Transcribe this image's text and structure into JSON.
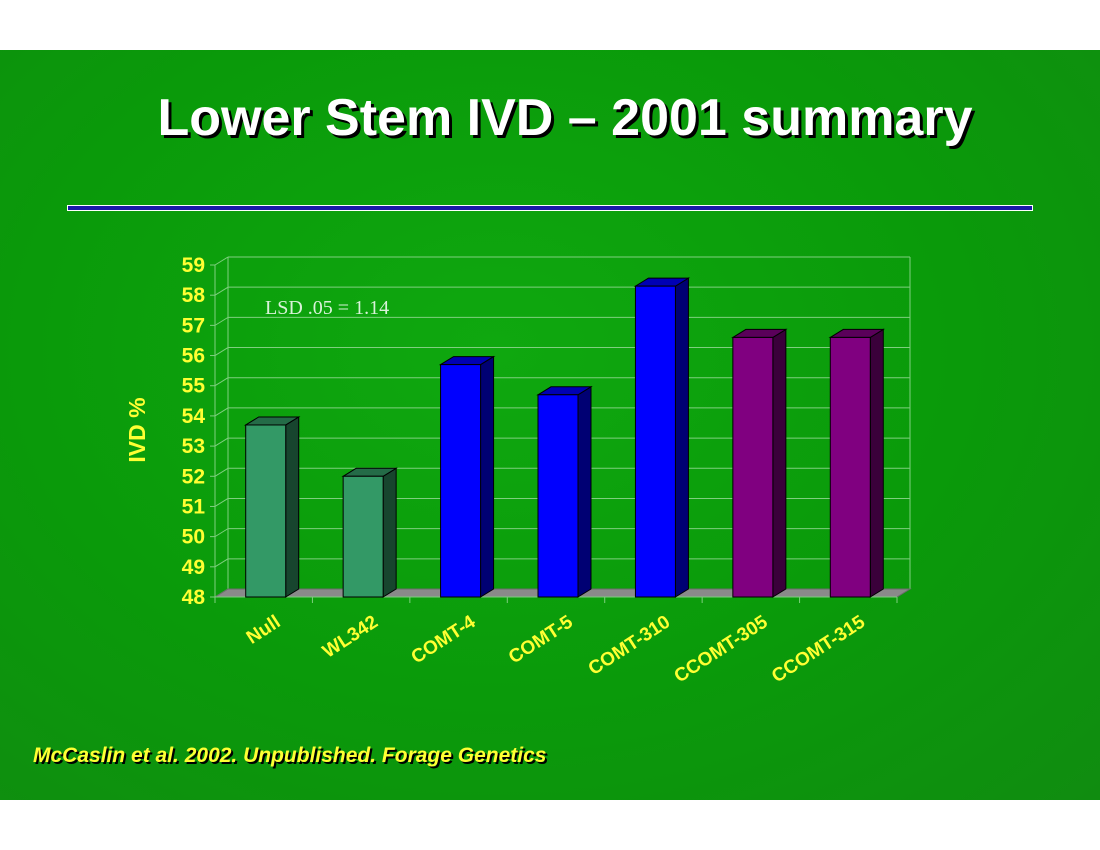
{
  "slide": {
    "title": "Lower Stem IVD – 2001 summary",
    "citation": "McCaslin et al. 2002.  Unpublished.  Forage Genetics"
  },
  "chart_data": {
    "type": "bar",
    "title": "",
    "xlabel": "",
    "ylabel": "IVD %",
    "categories": [
      "Null",
      "WL342",
      "COMT-4",
      "COMT-5",
      "COMT-310",
      "CCOMT-305",
      "CCOMT-315"
    ],
    "values": [
      53.7,
      52.0,
      55.7,
      54.7,
      58.3,
      56.6,
      56.6
    ],
    "ylim": [
      48,
      59
    ],
    "yticks": [
      "48",
      "49",
      "50",
      "51",
      "52",
      "53",
      "54",
      "55",
      "56",
      "57",
      "58",
      "59"
    ],
    "bar_colors": [
      "#339966",
      "#339966",
      "#0000ff",
      "#0000ff",
      "#0000ff",
      "#800080",
      "#800080"
    ],
    "annotation": "LSD .05 = 1.14",
    "grid": true,
    "style": "3d"
  },
  "colors": {
    "background": "#0a9a0a",
    "label_yellow": "#ffff33",
    "gridline": "#7fcf7f",
    "rule": "#1a1aa8"
  }
}
